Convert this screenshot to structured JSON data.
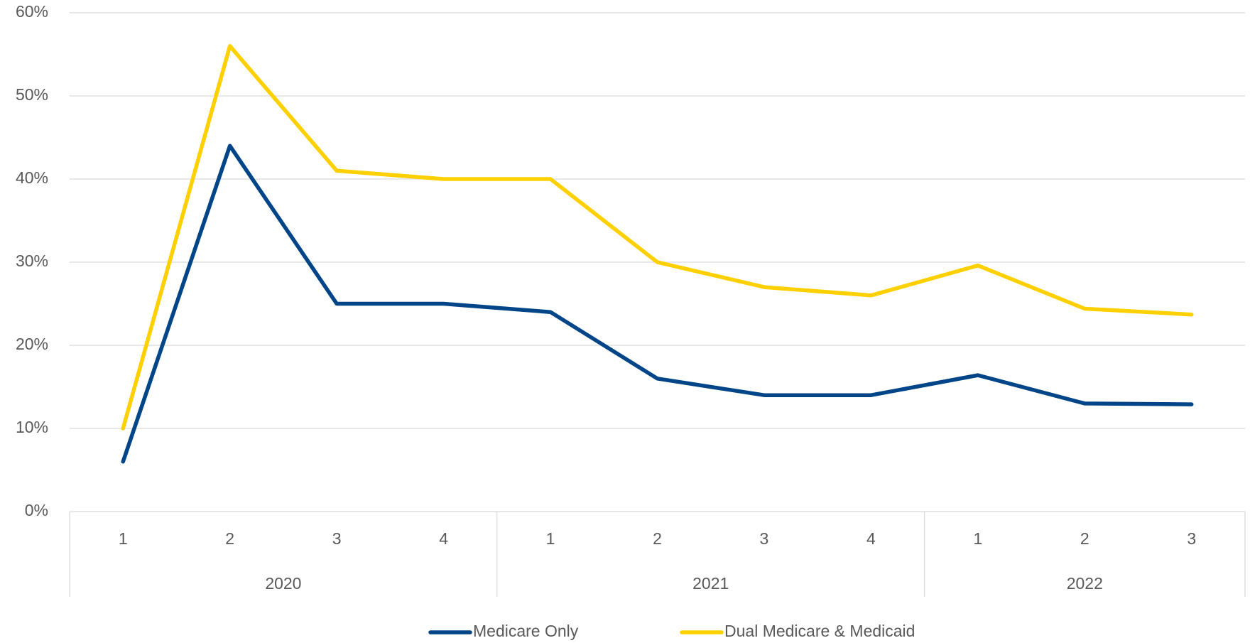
{
  "chart_data": {
    "type": "line",
    "category_groups": [
      {
        "label": "2020",
        "categories": [
          "1",
          "2",
          "3",
          "4"
        ]
      },
      {
        "label": "2021",
        "categories": [
          "1",
          "2",
          "3",
          "4"
        ]
      },
      {
        "label": "2022",
        "categories": [
          "1",
          "2",
          "3"
        ]
      }
    ],
    "series": [
      {
        "name": "Medicare Only",
        "color": "#004587",
        "values": [
          6,
          44,
          25,
          25,
          24,
          16,
          14,
          14,
          16.4,
          13,
          12.9
        ]
      },
      {
        "name": "Dual Medicare & Medicaid",
        "color": "#ffd000",
        "values": [
          10,
          56,
          41,
          40,
          40,
          30,
          27,
          26,
          29.6,
          24.4,
          23.7
        ]
      }
    ],
    "ylim": [
      0,
      60
    ],
    "yticks": [
      {
        "value": 0,
        "label": "0%"
      },
      {
        "value": 10,
        "label": "10%"
      },
      {
        "value": 20,
        "label": "20%"
      },
      {
        "value": 30,
        "label": "30%"
      },
      {
        "value": 40,
        "label": "40%"
      },
      {
        "value": 50,
        "label": "50%"
      },
      {
        "value": 60,
        "label": "60%"
      }
    ],
    "grid": true,
    "legend": "bottom"
  }
}
